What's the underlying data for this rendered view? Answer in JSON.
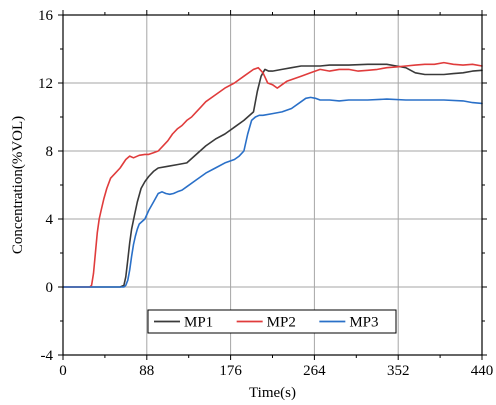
{
  "chart_data": {
    "type": "line",
    "xlabel": "Time(s)",
    "ylabel": "Concentration(%VOL)",
    "xlim": [
      0,
      440
    ],
    "ylim": [
      -4,
      16
    ],
    "xticks": [
      0,
      88,
      176,
      264,
      352,
      440
    ],
    "yticks": [
      -4,
      0,
      4,
      8,
      12,
      16
    ],
    "grid": true,
    "legend": "bottom-right",
    "series": [
      {
        "name": "MP1",
        "color": "#3a3a3a",
        "x": [
          0,
          60,
          64,
          66,
          68,
          70,
          72,
          75,
          78,
          82,
          86,
          90,
          95,
          100,
          110,
          120,
          130,
          140,
          150,
          160,
          170,
          180,
          190,
          200,
          204,
          208,
          212,
          216,
          220,
          230,
          240,
          250,
          260,
          270,
          280,
          300,
          320,
          340,
          350,
          360,
          370,
          380,
          390,
          400,
          410,
          420,
          430,
          440
        ],
        "y": [
          0,
          0,
          0.1,
          0.6,
          1.6,
          2.6,
          3.4,
          4.2,
          5.0,
          5.8,
          6.2,
          6.5,
          6.8,
          7.0,
          7.1,
          7.2,
          7.3,
          7.8,
          8.3,
          8.7,
          9.0,
          9.4,
          9.8,
          10.3,
          11.5,
          12.4,
          12.8,
          12.7,
          12.7,
          12.8,
          12.9,
          13.0,
          13.0,
          13.0,
          13.05,
          13.05,
          13.1,
          13.1,
          13.0,
          12.9,
          12.6,
          12.5,
          12.5,
          12.5,
          12.55,
          12.6,
          12.7,
          12.75
        ]
      },
      {
        "name": "MP2",
        "color": "#e03c3c",
        "x": [
          0,
          28,
          30,
          32,
          34,
          36,
          38,
          40,
          43,
          46,
          50,
          55,
          60,
          66,
          70,
          74,
          80,
          86,
          90,
          95,
          100,
          105,
          110,
          115,
          120,
          125,
          130,
          135,
          140,
          145,
          150,
          160,
          170,
          180,
          190,
          200,
          205,
          210,
          215,
          220,
          225,
          230,
          235,
          240,
          250,
          260,
          270,
          280,
          290,
          300,
          310,
          320,
          330,
          340,
          350,
          360,
          370,
          380,
          390,
          400,
          410,
          420,
          430,
          440
        ],
        "y": [
          0,
          0,
          0.1,
          0.8,
          2.0,
          3.2,
          4.0,
          4.5,
          5.2,
          5.8,
          6.4,
          6.7,
          7.0,
          7.5,
          7.7,
          7.6,
          7.75,
          7.8,
          7.8,
          7.9,
          8.0,
          8.3,
          8.6,
          9.0,
          9.3,
          9.5,
          9.8,
          10.0,
          10.3,
          10.6,
          10.9,
          11.3,
          11.7,
          12.0,
          12.4,
          12.8,
          12.9,
          12.6,
          12.0,
          11.9,
          11.7,
          11.9,
          12.1,
          12.2,
          12.4,
          12.6,
          12.8,
          12.7,
          12.8,
          12.8,
          12.7,
          12.75,
          12.8,
          12.9,
          12.95,
          13.0,
          13.05,
          13.1,
          13.1,
          13.2,
          13.1,
          13.05,
          13.1,
          13.0
        ]
      },
      {
        "name": "MP3",
        "color": "#2a70c8",
        "x": [
          0,
          64,
          66,
          68,
          70,
          72,
          74,
          76,
          78,
          80,
          82,
          86,
          90,
          95,
          100,
          104,
          108,
          112,
          116,
          120,
          125,
          130,
          140,
          150,
          160,
          170,
          180,
          185,
          190,
          194,
          198,
          202,
          206,
          210,
          220,
          230,
          240,
          250,
          255,
          260,
          265,
          270,
          280,
          290,
          300,
          320,
          340,
          360,
          380,
          400,
          420,
          430,
          440
        ],
        "y": [
          0,
          0,
          0.1,
          0.4,
          1.0,
          1.8,
          2.5,
          3.0,
          3.4,
          3.7,
          3.8,
          4.0,
          4.5,
          5.0,
          5.5,
          5.6,
          5.5,
          5.45,
          5.5,
          5.6,
          5.7,
          5.9,
          6.3,
          6.7,
          7.0,
          7.3,
          7.5,
          7.7,
          8.0,
          9.0,
          9.8,
          10.0,
          10.1,
          10.1,
          10.2,
          10.3,
          10.5,
          10.9,
          11.1,
          11.15,
          11.1,
          11.0,
          11.0,
          10.95,
          11.0,
          11.0,
          11.05,
          11.0,
          11.0,
          11.0,
          10.95,
          10.85,
          10.8
        ]
      }
    ]
  }
}
